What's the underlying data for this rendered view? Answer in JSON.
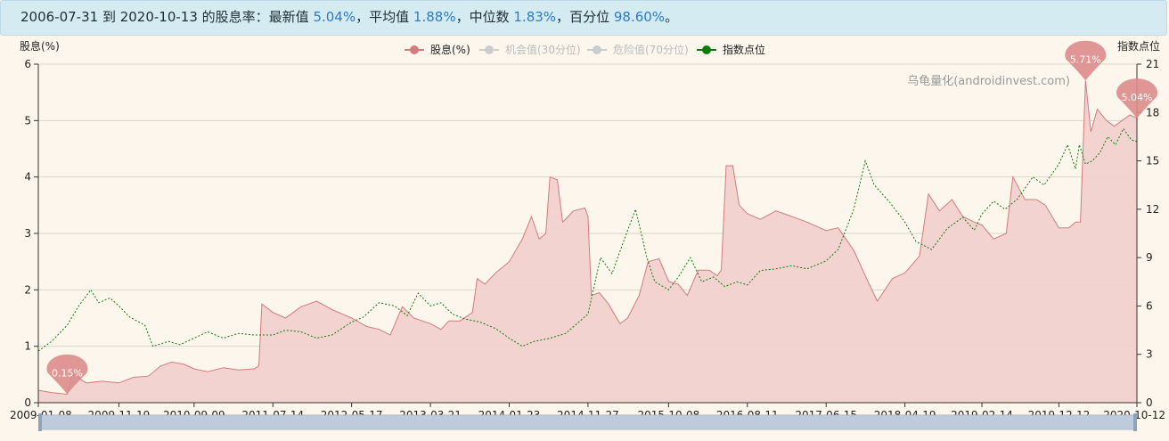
{
  "summary": {
    "range": "2006-07-31 到 2020-10-13 的股息率：",
    "latest_label": "最新值",
    "latest_value": "5.04%",
    "sep1": "，",
    "mean_label": "平均值",
    "mean_value": "1.88%",
    "sep2": "，",
    "median_label": "中位数",
    "median_value": "1.83%",
    "sep3": "，",
    "pct_label": "百分位",
    "pct_value": "98.60%",
    "end": "。"
  },
  "chart_data": {
    "type": "line",
    "watermark": "乌龟量化(androidinvest.com)",
    "grid": true,
    "legend_position": "top-center",
    "legend": [
      {
        "name": "股息(%)",
        "color": "#d47b7b",
        "active": true
      },
      {
        "name": "机会值(30分位)",
        "color": "#cccccc",
        "active": false
      },
      {
        "name": "危险值(70分位)",
        "color": "#cccccc",
        "active": false
      },
      {
        "name": "指数点位",
        "color": "#0a7d0a",
        "active": true
      }
    ],
    "y_left": {
      "label": "股息(%)",
      "min": 0,
      "max": 6,
      "ticks": [
        "0",
        "1",
        "2",
        "3",
        "4",
        "5",
        "6"
      ]
    },
    "y_right": {
      "label": "指数点位",
      "min": 0,
      "max": 21,
      "ticks": [
        "0",
        "3",
        "6",
        "9",
        "12",
        "15",
        "18",
        "21"
      ]
    },
    "x_start": "2009-01-08",
    "x_end": "2020-10-12",
    "x_ticks": [
      "2009-01-08",
      "2009-11-19",
      "2010-09-09",
      "2011-07-14",
      "2012-05-17",
      "2013-03-21",
      "2014-01-23",
      "2014-11-27",
      "2015-10-08",
      "2016-08-11",
      "2017-06-15",
      "2018-04-19",
      "2019-02-14",
      "2019-12-12",
      "2020-10-12"
    ],
    "markers": [
      {
        "label": "0.15%",
        "date": "2009-05-01",
        "value": 0.15
      },
      {
        "label": "5.71%",
        "date": "2020-03-25",
        "value": 5.71
      },
      {
        "label": "5.04%",
        "date": "2020-10-12",
        "value": 5.04
      }
    ],
    "colors": {
      "dividend_line": "#d47b7b",
      "dividend_fill": "#f2cfcc",
      "index_line": "#0a7d0a",
      "marker": "#dc8c8c"
    },
    "series": [
      {
        "name": "股息(%)",
        "axis": "left",
        "points": [
          [
            "2009-01-08",
            0.22
          ],
          [
            "2009-03-01",
            0.18
          ],
          [
            "2009-05-01",
            0.15
          ],
          [
            "2009-05-20",
            0.5
          ],
          [
            "2009-07-15",
            0.35
          ],
          [
            "2009-09-15",
            0.38
          ],
          [
            "2009-11-19",
            0.35
          ],
          [
            "2010-01-15",
            0.45
          ],
          [
            "2010-03-15",
            0.47
          ],
          [
            "2010-05-01",
            0.65
          ],
          [
            "2010-06-15",
            0.72
          ],
          [
            "2010-08-01",
            0.68
          ],
          [
            "2010-09-09",
            0.6
          ],
          [
            "2010-11-01",
            0.55
          ],
          [
            "2011-01-01",
            0.62
          ],
          [
            "2011-03-01",
            0.58
          ],
          [
            "2011-05-01",
            0.6
          ],
          [
            "2011-05-20",
            0.65
          ],
          [
            "2011-06-01",
            1.75
          ],
          [
            "2011-07-14",
            1.6
          ],
          [
            "2011-09-01",
            1.5
          ],
          [
            "2011-11-01",
            1.7
          ],
          [
            "2012-01-01",
            1.8
          ],
          [
            "2012-03-01",
            1.65
          ],
          [
            "2012-05-17",
            1.5
          ],
          [
            "2012-07-15",
            1.35
          ],
          [
            "2012-09-01",
            1.3
          ],
          [
            "2012-10-15",
            1.2
          ],
          [
            "2012-12-01",
            1.7
          ],
          [
            "2013-01-15",
            1.5
          ],
          [
            "2013-03-21",
            1.4
          ],
          [
            "2013-05-01",
            1.3
          ],
          [
            "2013-06-01",
            1.45
          ],
          [
            "2013-07-15",
            1.45
          ],
          [
            "2013-09-01",
            1.6
          ],
          [
            "2013-09-20",
            2.2
          ],
          [
            "2013-10-20",
            2.1
          ],
          [
            "2013-12-01",
            2.3
          ],
          [
            "2014-01-23",
            2.5
          ],
          [
            "2014-03-15",
            2.9
          ],
          [
            "2014-04-20",
            3.3
          ],
          [
            "2014-05-20",
            2.9
          ],
          [
            "2014-06-15",
            3.0
          ],
          [
            "2014-07-01",
            4.0
          ],
          [
            "2014-07-30",
            3.95
          ],
          [
            "2014-08-20",
            3.2
          ],
          [
            "2014-10-01",
            3.4
          ],
          [
            "2014-11-15",
            3.45
          ],
          [
            "2014-11-27",
            3.3
          ],
          [
            "2014-12-10",
            1.9
          ],
          [
            "2015-01-10",
            1.95
          ],
          [
            "2015-02-15",
            1.75
          ],
          [
            "2015-04-01",
            1.4
          ],
          [
            "2015-05-01",
            1.5
          ],
          [
            "2015-06-15",
            1.9
          ],
          [
            "2015-07-20",
            2.5
          ],
          [
            "2015-09-01",
            2.55
          ],
          [
            "2015-10-08",
            2.15
          ],
          [
            "2015-11-15",
            2.1
          ],
          [
            "2015-12-20",
            1.9
          ],
          [
            "2016-02-01",
            2.35
          ],
          [
            "2016-03-15",
            2.35
          ],
          [
            "2016-04-15",
            2.25
          ],
          [
            "2016-05-01",
            2.35
          ],
          [
            "2016-05-20",
            4.2
          ],
          [
            "2016-06-15",
            4.2
          ],
          [
            "2016-07-10",
            3.5
          ],
          [
            "2016-08-11",
            3.35
          ],
          [
            "2016-10-01",
            3.25
          ],
          [
            "2016-12-01",
            3.4
          ],
          [
            "2017-02-01",
            3.3
          ],
          [
            "2017-04-01",
            3.2
          ],
          [
            "2017-06-15",
            3.05
          ],
          [
            "2017-08-01",
            3.1
          ],
          [
            "2017-10-01",
            2.7
          ],
          [
            "2017-11-20",
            2.2
          ],
          [
            "2018-01-01",
            1.8
          ],
          [
            "2018-03-01",
            2.2
          ],
          [
            "2018-04-19",
            2.3
          ],
          [
            "2018-06-15",
            2.6
          ],
          [
            "2018-07-20",
            3.7
          ],
          [
            "2018-09-01",
            3.4
          ],
          [
            "2018-10-20",
            3.6
          ],
          [
            "2018-12-01",
            3.3
          ],
          [
            "2019-01-15",
            3.2
          ],
          [
            "2019-02-14",
            3.15
          ],
          [
            "2019-04-01",
            2.9
          ],
          [
            "2019-05-20",
            3.0
          ],
          [
            "2019-06-15",
            4.0
          ],
          [
            "2019-08-01",
            3.6
          ],
          [
            "2019-09-15",
            3.6
          ],
          [
            "2019-10-20",
            3.5
          ],
          [
            "2019-12-12",
            3.1
          ],
          [
            "2020-01-20",
            3.1
          ],
          [
            "2020-02-15",
            3.2
          ],
          [
            "2020-03-05",
            3.2
          ],
          [
            "2020-03-25",
            5.71
          ],
          [
            "2020-04-15",
            4.8
          ],
          [
            "2020-05-10",
            5.2
          ],
          [
            "2020-06-15",
            5.0
          ],
          [
            "2020-07-15",
            4.9
          ],
          [
            "2020-08-15",
            5.0
          ],
          [
            "2020-09-15",
            5.1
          ],
          [
            "2020-10-12",
            5.04
          ]
        ]
      },
      {
        "name": "指数点位",
        "axis": "right",
        "points": [
          [
            "2009-01-08",
            3.2
          ],
          [
            "2009-03-01",
            3.8
          ],
          [
            "2009-05-01",
            4.8
          ],
          [
            "2009-06-15",
            6.0
          ],
          [
            "2009-08-01",
            7.0
          ],
          [
            "2009-09-01",
            6.2
          ],
          [
            "2009-10-15",
            6.5
          ],
          [
            "2009-11-19",
            6.0
          ],
          [
            "2010-01-01",
            5.3
          ],
          [
            "2010-03-01",
            4.8
          ],
          [
            "2010-04-01",
            3.5
          ],
          [
            "2010-06-01",
            3.8
          ],
          [
            "2010-07-15",
            3.6
          ],
          [
            "2010-09-09",
            4.0
          ],
          [
            "2010-11-01",
            4.4
          ],
          [
            "2011-01-01",
            4.0
          ],
          [
            "2011-03-01",
            4.3
          ],
          [
            "2011-05-01",
            4.2
          ],
          [
            "2011-07-14",
            4.2
          ],
          [
            "2011-09-01",
            4.5
          ],
          [
            "2011-11-01",
            4.4
          ],
          [
            "2012-01-01",
            4.0
          ],
          [
            "2012-03-01",
            4.2
          ],
          [
            "2012-05-17",
            5.0
          ],
          [
            "2012-07-01",
            5.3
          ],
          [
            "2012-09-01",
            6.2
          ],
          [
            "2012-11-01",
            6.0
          ],
          [
            "2012-12-20",
            5.4
          ],
          [
            "2013-02-01",
            6.8
          ],
          [
            "2013-03-21",
            6.0
          ],
          [
            "2013-05-01",
            6.2
          ],
          [
            "2013-06-15",
            5.5
          ],
          [
            "2013-08-01",
            5.2
          ],
          [
            "2013-10-01",
            5.0
          ],
          [
            "2013-12-01",
            4.6
          ],
          [
            "2014-01-23",
            4.0
          ],
          [
            "2014-03-15",
            3.5
          ],
          [
            "2014-05-01",
            3.8
          ],
          [
            "2014-07-01",
            4.0
          ],
          [
            "2014-09-01",
            4.3
          ],
          [
            "2014-11-27",
            5.5
          ],
          [
            "2015-01-15",
            9.0
          ],
          [
            "2015-03-01",
            8.0
          ],
          [
            "2015-04-15",
            10.0
          ],
          [
            "2015-06-01",
            12.0
          ],
          [
            "2015-07-15",
            9.0
          ],
          [
            "2015-08-15",
            7.5
          ],
          [
            "2015-10-08",
            7.0
          ],
          [
            "2015-11-15",
            7.8
          ],
          [
            "2016-01-01",
            9.0
          ],
          [
            "2016-02-15",
            7.5
          ],
          [
            "2016-04-01",
            7.8
          ],
          [
            "2016-05-15",
            7.2
          ],
          [
            "2016-07-01",
            7.5
          ],
          [
            "2016-08-11",
            7.3
          ],
          [
            "2016-10-01",
            8.2
          ],
          [
            "2016-12-01",
            8.3
          ],
          [
            "2017-02-01",
            8.5
          ],
          [
            "2017-04-01",
            8.3
          ],
          [
            "2017-06-15",
            8.8
          ],
          [
            "2017-08-01",
            9.5
          ],
          [
            "2017-10-01",
            12.0
          ],
          [
            "2017-11-15",
            15.0
          ],
          [
            "2017-12-20",
            13.5
          ],
          [
            "2018-02-15",
            12.5
          ],
          [
            "2018-04-19",
            11.2
          ],
          [
            "2018-06-01",
            10.0
          ],
          [
            "2018-08-01",
            9.5
          ],
          [
            "2018-10-01",
            10.8
          ],
          [
            "2018-12-01",
            11.5
          ],
          [
            "2019-01-15",
            10.7
          ],
          [
            "2019-02-14",
            11.7
          ],
          [
            "2019-04-01",
            12.5
          ],
          [
            "2019-05-15",
            12.0
          ],
          [
            "2019-07-01",
            12.6
          ],
          [
            "2019-09-01",
            14.0
          ],
          [
            "2019-10-15",
            13.5
          ],
          [
            "2019-12-12",
            14.8
          ],
          [
            "2020-01-15",
            16.0
          ],
          [
            "2020-02-15",
            14.5
          ],
          [
            "2020-03-01",
            16.0
          ],
          [
            "2020-03-25",
            14.8
          ],
          [
            "2020-04-20",
            15.0
          ],
          [
            "2020-05-20",
            15.5
          ],
          [
            "2020-06-20",
            16.5
          ],
          [
            "2020-07-20",
            16.0
          ],
          [
            "2020-08-20",
            17.0
          ],
          [
            "2020-09-20",
            16.3
          ],
          [
            "2020-10-12",
            16.2
          ]
        ]
      }
    ]
  }
}
